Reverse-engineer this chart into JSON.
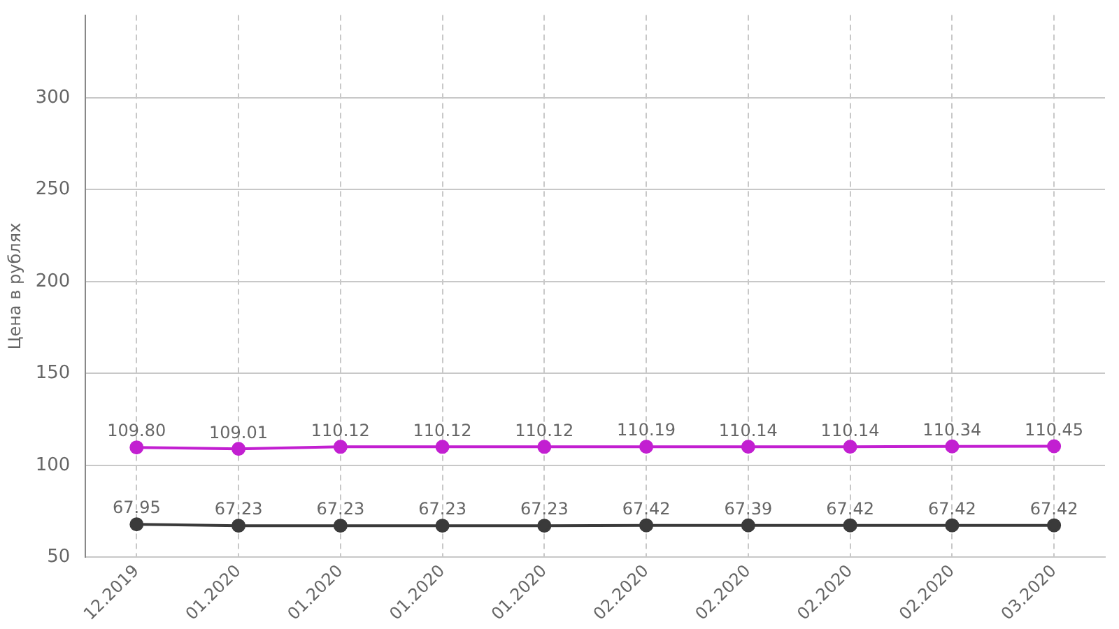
{
  "chart_data": {
    "type": "line",
    "ylabel": "Цена в рублях",
    "categories": [
      "12.2019",
      "01.2020",
      "01.2020",
      "01.2020",
      "01.2020",
      "02.2020",
      "02.2020",
      "02.2020",
      "02.2020",
      "03.2020"
    ],
    "series": [
      {
        "color": "#c21fd1",
        "values": [
          109.8,
          109.01,
          110.12,
          110.12,
          110.12,
          110.19,
          110.14,
          110.14,
          110.34,
          110.45
        ],
        "value_labels": [
          "109.80",
          "109.01",
          "110.12",
          "110.12",
          "110.12",
          "110.19",
          "110.14",
          "110.14",
          "110.34",
          "110.45"
        ]
      },
      {
        "color": "#3a3a3a",
        "values": [
          67.95,
          67.23,
          67.23,
          67.23,
          67.23,
          67.42,
          67.39,
          67.42,
          67.42,
          67.42
        ],
        "value_labels": [
          "67.95",
          "67.23",
          "67.23",
          "67.23",
          "67.23",
          "67.42",
          "67.39",
          "67.42",
          "67.42",
          "67.42"
        ]
      }
    ],
    "ylim": [
      50,
      345
    ],
    "yticks": [
      50,
      100,
      150,
      200,
      250,
      300
    ],
    "grid": true,
    "marker": "circle",
    "line_style": "solid"
  }
}
